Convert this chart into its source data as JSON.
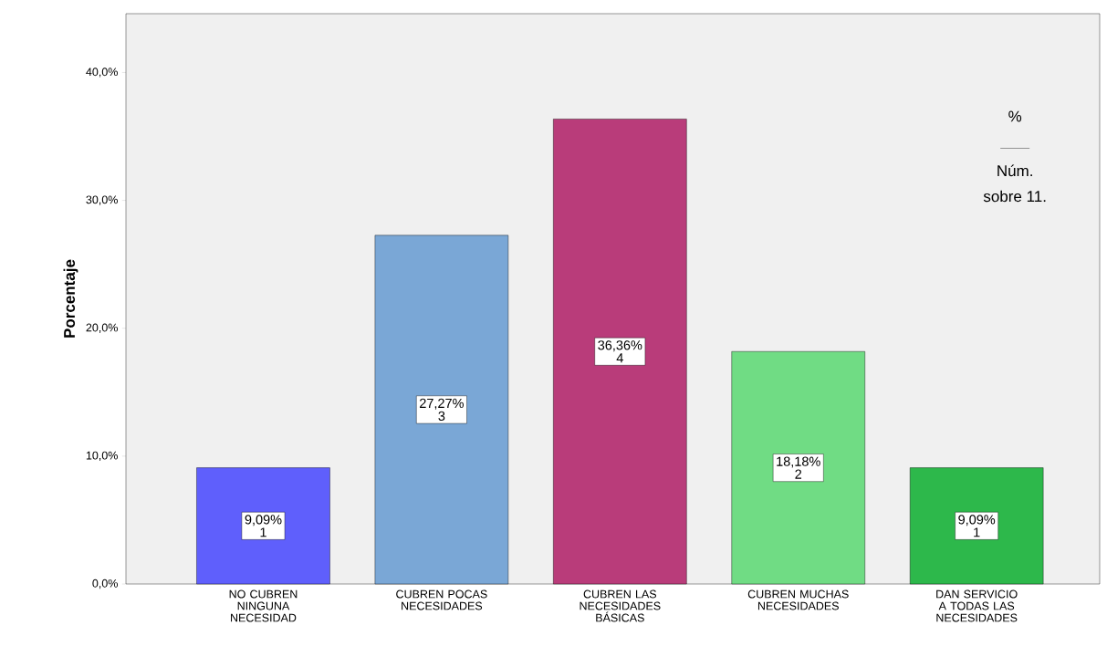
{
  "chart_data": {
    "type": "bar",
    "ylabel": "Porcentaje",
    "categories": [
      "NO CUBREN NINGUNA NECESIDAD",
      "CUBREN POCAS NECESIDADES",
      "CUBREN LAS NECESIDADES BÁSICAS",
      "CUBREN MUCHAS NECESIDADES",
      "DAN SERVICIO A TODAS LAS NECESIDADES"
    ],
    "values": [
      9.09,
      27.27,
      36.36,
      18.18,
      9.09
    ],
    "colors": [
      "#5f5ffc",
      "#7aa7d6",
      "#b93c7a",
      "#70dc84",
      "#2db84b"
    ],
    "value_labels": [
      "9,09%",
      "27,27%",
      "36,36%",
      "18,18%",
      "9,09%"
    ],
    "ylim": [
      0,
      44.6
    ],
    "yticks": [
      {
        "value": 0,
        "label": "0,0%"
      },
      {
        "value": 10,
        "label": "10,0%"
      },
      {
        "value": 20,
        "label": "20,0%"
      },
      {
        "value": 30,
        "label": "30,0%"
      },
      {
        "value": 40,
        "label": "40,0%"
      }
    ],
    "annotations": [
      "%",
      "Núm.",
      "sobre 11.",
      "1",
      "3",
      "4",
      "2",
      "1"
    ],
    "grid": false
  }
}
